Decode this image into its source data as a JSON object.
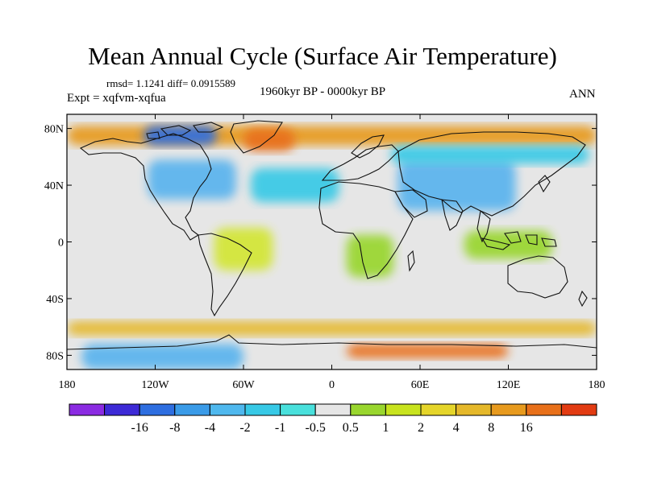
{
  "title": "Mean Annual Cycle (Surface Air Temperature)",
  "subtitle": {
    "stats": "rmsd= 1.1241 diff= 0.0915589",
    "experiment": "Expt = xqfvm-xqfua",
    "period": "1960kyr BP - 0000kyr BP",
    "season": "ANN"
  },
  "map": {
    "projection": "cylindrical equidistant",
    "lon_range": [
      -180,
      180
    ],
    "lat_range": [
      -90,
      90
    ],
    "lat_ticks": [
      {
        "value": 80,
        "label": "80N"
      },
      {
        "value": 40,
        "label": "40N"
      },
      {
        "value": 0,
        "label": "0"
      },
      {
        "value": -40,
        "label": "40S"
      },
      {
        "value": -80,
        "label": "80S"
      }
    ],
    "lon_ticks": [
      {
        "value": -180,
        "label": "180"
      },
      {
        "value": -120,
        "label": "120W"
      },
      {
        "value": -60,
        "label": "60W"
      },
      {
        "value": 0,
        "label": "0"
      },
      {
        "value": 60,
        "label": "60E"
      },
      {
        "value": 120,
        "label": "120E"
      },
      {
        "value": 180,
        "label": "180"
      }
    ],
    "background_color": "#e6e6e6",
    "regions": [
      {
        "name": "arctic-warm-band",
        "color": "#e79a1e",
        "lon": [
          -180,
          180
        ],
        "lat": [
          68,
          82
        ]
      },
      {
        "name": "canada-arctic-cold",
        "color": "#2e6ee0",
        "lon": [
          -128,
          -78
        ],
        "lat": [
          68,
          82
        ]
      },
      {
        "name": "greenland-warm",
        "color": "#e8701a",
        "lon": [
          -60,
          -25
        ],
        "lat": [
          64,
          80
        ]
      },
      {
        "name": "north-america-cold",
        "color": "#5ab4ee",
        "lon": [
          -125,
          -65
        ],
        "lat": [
          30,
          58
        ]
      },
      {
        "name": "north-atlantic-cool",
        "color": "#37c9e6",
        "lon": [
          -55,
          5
        ],
        "lat": [
          28,
          52
        ]
      },
      {
        "name": "central-asia-cool",
        "color": "#5ab4ee",
        "lon": [
          45,
          125
        ],
        "lat": [
          22,
          58
        ]
      },
      {
        "name": "siberia-cool",
        "color": "#37c9e6",
        "lon": [
          40,
          175
        ],
        "lat": [
          55,
          68
        ]
      },
      {
        "name": "amazon-warm",
        "color": "#d3e634",
        "lon": [
          -80,
          -40
        ],
        "lat": [
          -20,
          10
        ]
      },
      {
        "name": "africa-green",
        "color": "#99d62e",
        "lon": [
          10,
          42
        ],
        "lat": [
          -25,
          5
        ]
      },
      {
        "name": "maritime-green",
        "color": "#99d62e",
        "lon": [
          90,
          150
        ],
        "lat": [
          -12,
          8
        ]
      },
      {
        "name": "southern-ocean-warm",
        "color": "#e5b82a",
        "lon": [
          -180,
          180
        ],
        "lat": [
          -66,
          -56
        ]
      },
      {
        "name": "antarctica-mixed",
        "color": "#5ab4ee",
        "lon": [
          -170,
          -60
        ],
        "lat": [
          -90,
          -72
        ]
      },
      {
        "name": "antarctica-warm",
        "color": "#e8701a",
        "lon": [
          10,
          120
        ],
        "lat": [
          -82,
          -72
        ]
      }
    ]
  },
  "colorbar": {
    "colors": [
      "#8b2be2",
      "#3d2ad6",
      "#2e6ee0",
      "#3a9be8",
      "#4fb8ee",
      "#37c9e6",
      "#49e0dc",
      "#e6e6e6",
      "#99d62e",
      "#c8e31e",
      "#e5d52a",
      "#e5b82a",
      "#e79a1e",
      "#e8701a",
      "#e23b12"
    ],
    "labels": [
      "-16",
      "-8",
      "-4",
      "-2",
      "-1",
      "-0.5",
      "0.5",
      "1",
      "2",
      "4",
      "8",
      "16"
    ]
  }
}
